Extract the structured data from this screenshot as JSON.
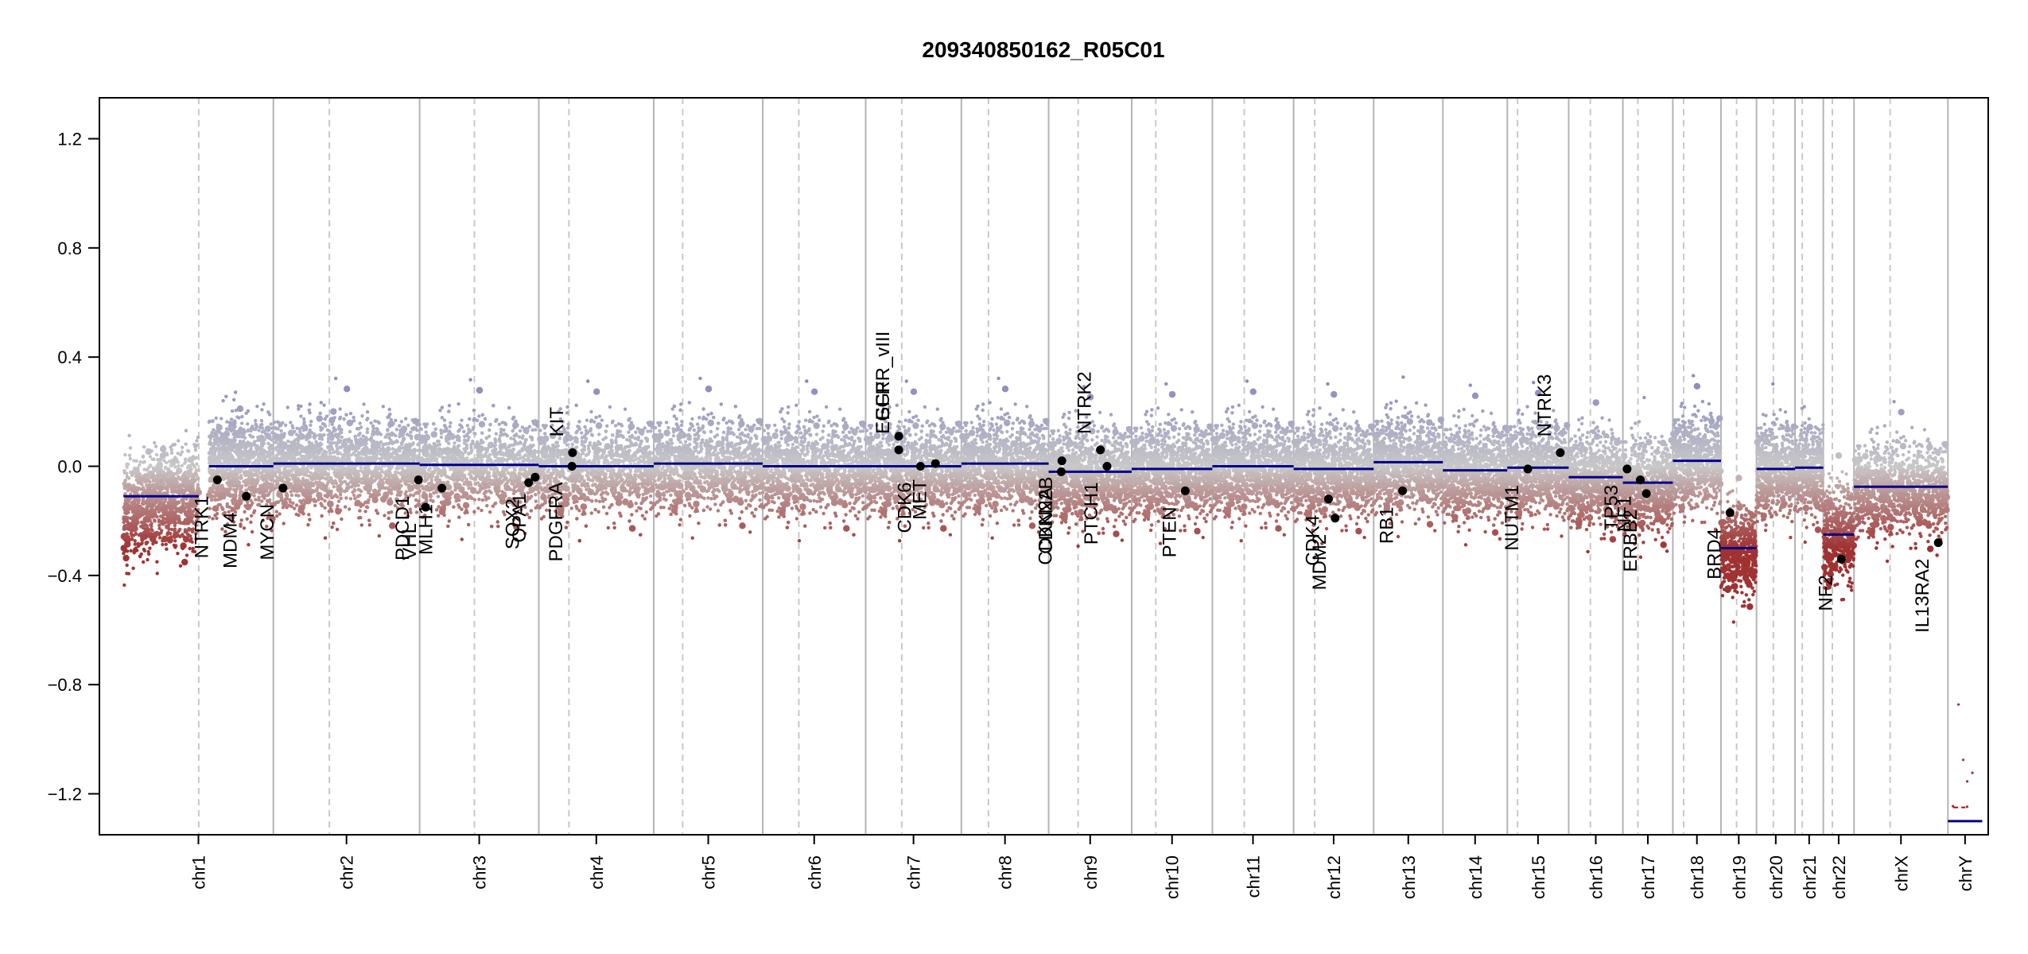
{
  "chart_data": {
    "type": "scatter",
    "title": "209340850162_R05C01",
    "xlabel": "",
    "ylabel": "",
    "ylim": [
      -1.35,
      1.35
    ],
    "yticks": [
      -1.2,
      -0.8,
      -0.4,
      0.0,
      0.4,
      0.8,
      1.2
    ],
    "ytick_labels": [
      "−1.2",
      "−0.8",
      "−0.4",
      "0.0",
      "0.4",
      "0.8",
      "1.2"
    ],
    "grid": false,
    "legend": "none",
    "colors": {
      "gain": "#8c8cc0",
      "neutral": "#c8c8c8",
      "loss": "#a03232",
      "segment": "#00008b",
      "marker": "#000000",
      "chr_line": "#b4b4b4"
    },
    "chromosomes": [
      {
        "name": "chr1",
        "start": 0,
        "end": 249,
        "cen": 125
      },
      {
        "name": "chr2",
        "start": 249,
        "end": 492,
        "cen": 93
      },
      {
        "name": "chr3",
        "start": 492,
        "end": 690,
        "cen": 91
      },
      {
        "name": "chr4",
        "start": 690,
        "end": 881,
        "cen": 50
      },
      {
        "name": "chr5",
        "start": 881,
        "end": 1062,
        "cen": 48
      },
      {
        "name": "chr6",
        "start": 1062,
        "end": 1233,
        "cen": 60
      },
      {
        "name": "chr7",
        "start": 1233,
        "end": 1392,
        "cen": 60
      },
      {
        "name": "chr8",
        "start": 1392,
        "end": 1537,
        "cen": 45
      },
      {
        "name": "chr9",
        "start": 1537,
        "end": 1675,
        "cen": 49
      },
      {
        "name": "chr10",
        "start": 1675,
        "end": 1809,
        "cen": 40
      },
      {
        "name": "chr11",
        "start": 1809,
        "end": 1944,
        "cen": 53
      },
      {
        "name": "chr12",
        "start": 1944,
        "end": 2077,
        "cen": 35
      },
      {
        "name": "chr13",
        "start": 2077,
        "end": 2192,
        "cen": 0
      },
      {
        "name": "chr14",
        "start": 2192,
        "end": 2299,
        "cen": 0
      },
      {
        "name": "chr15",
        "start": 2299,
        "end": 2401,
        "cen": 17
      },
      {
        "name": "chr16",
        "start": 2401,
        "end": 2491,
        "cen": 36
      },
      {
        "name": "chr17",
        "start": 2491,
        "end": 2574,
        "cen": 25
      },
      {
        "name": "chr18",
        "start": 2574,
        "end": 2654,
        "cen": 18
      },
      {
        "name": "chr19",
        "start": 2654,
        "end": 2713,
        "cen": 26
      },
      {
        "name": "chr20",
        "start": 2713,
        "end": 2777,
        "cen": 28
      },
      {
        "name": "chr21",
        "start": 2777,
        "end": 2824,
        "cen": 12
      },
      {
        "name": "chr22",
        "start": 2824,
        "end": 2875,
        "cen": 15
      },
      {
        "name": "chrX",
        "start": 2875,
        "end": 3031,
        "cen": 60
      },
      {
        "name": "chrY",
        "start": 3031,
        "end": 3088,
        "cen": 0
      }
    ],
    "segments": [
      {
        "chr": "chr1",
        "start": 0,
        "end": 125,
        "y": -0.11
      },
      {
        "chr": "chr1",
        "start": 142,
        "end": 249,
        "y": 0.0
      },
      {
        "chr": "chr2",
        "start": 249,
        "end": 492,
        "y": 0.01
      },
      {
        "chr": "chr3",
        "start": 492,
        "end": 690,
        "y": 0.005
      },
      {
        "chr": "chr4",
        "start": 690,
        "end": 881,
        "y": 0.0
      },
      {
        "chr": "chr5",
        "start": 881,
        "end": 1062,
        "y": 0.01
      },
      {
        "chr": "chr6",
        "start": 1062,
        "end": 1233,
        "y": 0.0
      },
      {
        "chr": "chr7",
        "start": 1233,
        "end": 1392,
        "y": 0.0
      },
      {
        "chr": "chr8",
        "start": 1392,
        "end": 1537,
        "y": 0.01
      },
      {
        "chr": "chr9",
        "start": 1537,
        "end": 1675,
        "y": -0.02
      },
      {
        "chr": "chr10",
        "start": 1675,
        "end": 1809,
        "y": -0.01
      },
      {
        "chr": "chr11",
        "start": 1809,
        "end": 1944,
        "y": 0.0
      },
      {
        "chr": "chr12",
        "start": 1944,
        "end": 2077,
        "y": -0.01
      },
      {
        "chr": "chr13",
        "start": 2077,
        "end": 2192,
        "y": 0.015
      },
      {
        "chr": "chr14",
        "start": 2192,
        "end": 2299,
        "y": -0.015
      },
      {
        "chr": "chr15",
        "start": 2299,
        "end": 2401,
        "y": -0.005
      },
      {
        "chr": "chr16",
        "start": 2401,
        "end": 2491,
        "y": -0.04
      },
      {
        "chr": "chr17",
        "start": 2491,
        "end": 2574,
        "y": -0.06
      },
      {
        "chr": "chr18",
        "start": 2574,
        "end": 2654,
        "y": 0.02
      },
      {
        "chr": "chr19",
        "start": 2654,
        "end": 2713,
        "y": -0.3
      },
      {
        "chr": "chr20",
        "start": 2713,
        "end": 2777,
        "y": -0.01
      },
      {
        "chr": "chr21",
        "start": 2777,
        "end": 2824,
        "y": -0.005
      },
      {
        "chr": "chr22",
        "start": 2824,
        "end": 2875,
        "y": -0.25
      },
      {
        "chr": "chrX",
        "start": 2875,
        "end": 3031,
        "y": -0.075
      },
      {
        "chr": "chrY",
        "start": 3031,
        "end": 3088,
        "y": -1.3
      }
    ],
    "genes": [
      {
        "name": "NTRK1",
        "x": 156,
        "y": -0.05
      },
      {
        "name": "MDM4",
        "x": 204,
        "y": -0.11
      },
      {
        "name": "MYCN",
        "x": 265,
        "y": -0.08
      },
      {
        "name": "PDCD1",
        "x": 490,
        "y": -0.05
      },
      {
        "name": "VHL",
        "x": 502,
        "y": -0.15
      },
      {
        "name": "MLH1",
        "x": 529,
        "y": -0.08
      },
      {
        "name": "SOX2",
        "x": 673,
        "y": -0.06
      },
      {
        "name": "OPA1",
        "x": 684,
        "y": -0.04
      },
      {
        "name": "PDGFRA",
        "x": 745,
        "y": 0.0
      },
      {
        "name": "KIT",
        "x": 746,
        "y": 0.05
      },
      {
        "name": "EGFR_vIII",
        "x": 1288,
        "y": 0.11
      },
      {
        "name": "EGFR",
        "x": 1288,
        "y": 0.06
      },
      {
        "name": "MET",
        "x": 1349,
        "y": 0.01
      },
      {
        "name": "CDK6",
        "x": 1324,
        "y": 0.0
      },
      {
        "name": "CDKN2A",
        "x": 1558,
        "y": -0.02
      },
      {
        "name": "CDKN2B",
        "x": 1559,
        "y": 0.02
      },
      {
        "name": "PTCH1",
        "x": 1634,
        "y": 0.0
      },
      {
        "name": "NTRK2",
        "x": 1623,
        "y": 0.06
      },
      {
        "name": "PTEN",
        "x": 1764,
        "y": -0.09
      },
      {
        "name": "CDK4",
        "x": 2002,
        "y": -0.12
      },
      {
        "name": "MDM2",
        "x": 2013,
        "y": -0.19
      },
      {
        "name": "RB1",
        "x": 2125,
        "y": -0.09
      },
      {
        "name": "NUTM1",
        "x": 2333,
        "y": -0.01
      },
      {
        "name": "NTRK3",
        "x": 2387,
        "y": 0.05
      },
      {
        "name": "TP53",
        "x": 2498,
        "y": -0.01
      },
      {
        "name": "NF1",
        "x": 2520,
        "y": -0.05
      },
      {
        "name": "ERBB2",
        "x": 2530,
        "y": -0.1
      },
      {
        "name": "BRD4",
        "x": 2669,
        "y": -0.17
      },
      {
        "name": "NF2",
        "x": 2854,
        "y": -0.34
      },
      {
        "name": "IL13RA2",
        "x": 3015,
        "y": -0.28
      }
    ],
    "y_label_genes": [
      "NTRK1",
      "MDM4",
      "MYCN",
      "PDCD1",
      "VHL",
      "MLH1",
      "SOX2",
      "OPA1",
      "PDGFRA",
      "KIT",
      "EGFR_vIII",
      "EGFR",
      "MET",
      "CDK6",
      "CDKN2A",
      "CDKN2B",
      "PTCH1",
      "NTRK2",
      "PTEN",
      "CDK4",
      "MDM2",
      "RB1",
      "NUTM1",
      "NTRK3",
      "TP53",
      "NF1",
      "ERBB2",
      "BRD4",
      "NF2",
      "IL13RA2"
    ]
  }
}
